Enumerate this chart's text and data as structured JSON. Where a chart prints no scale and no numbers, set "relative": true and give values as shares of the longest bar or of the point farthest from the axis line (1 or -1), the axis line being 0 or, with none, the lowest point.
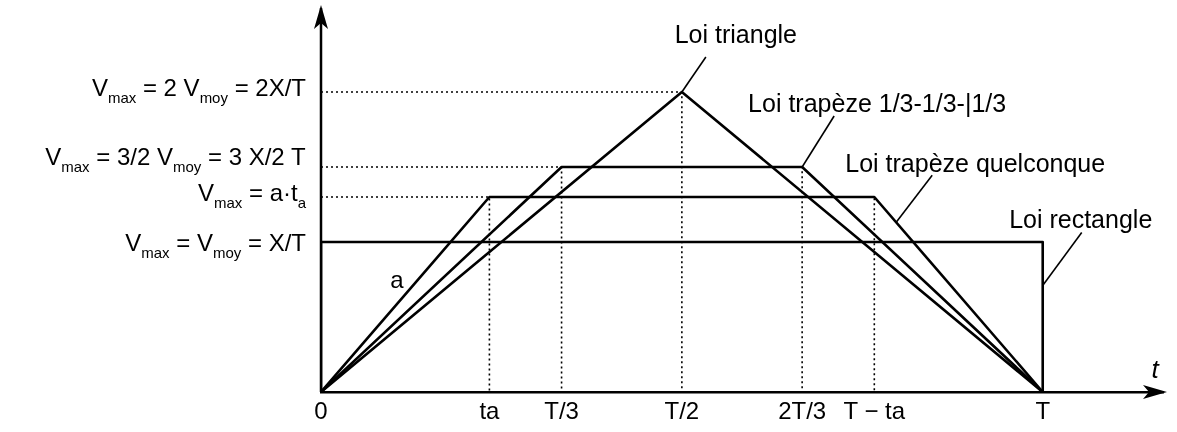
{
  "chart_data": {
    "type": "line",
    "xlabel": "t",
    "relative": true,
    "categories": [
      "0",
      null,
      null,
      null,
      null,
      null,
      null,
      "ta",
      null,
      null,
      "T/3",
      null,
      null,
      null,
      null,
      "T/2",
      null,
      null,
      null,
      null,
      "2T/3",
      null,
      null,
      "T − ta",
      null,
      null,
      null,
      null,
      null,
      null,
      "T",
      null,
      null,
      null,
      null,
      null
    ],
    "annotations": [
      "V$_{max}$ = 2 V$_{moy}$ = 2X/T",
      "V$_{max}$ = 3/2 V$_{moy}$ = 3 X/2 T",
      "V$_{max}$ = a·t$_{a}$",
      "V$_{max}$ = V$_{moy}$ = X/T",
      "a"
    ],
    "series": [
      {
        "name": "Loi triangle",
        "color": "#000000",
        "x": [
          "0",
          "T/2",
          "T"
        ],
        "values": [
          0,
          1,
          0
        ]
      },
      {
        "name": "Loi trapèze 1/3-1/3-|1/3",
        "color": "#000000",
        "x": [
          "0",
          "T/3",
          "2T/3",
          "T"
        ],
        "values": [
          0,
          0.75,
          0.75,
          0
        ]
      },
      {
        "name": "Loi trapèze quelconque",
        "color": "#000000",
        "x": [
          "0",
          "ta",
          "T − ta",
          "T"
        ],
        "values": [
          0,
          0.65,
          0.65,
          0
        ]
      },
      {
        "name": "Loi rectangle",
        "color": "#000000",
        "x": [
          "0",
          "0",
          "T",
          "T"
        ],
        "values": [
          0,
          0.5,
          0.5,
          0
        ]
      },
      {
        "color": "#000000",
        "line_style": "dotted",
        "x": [
          "0",
          "T/2",
          "T/2"
        ],
        "values": [
          1,
          1,
          0
        ]
      },
      {
        "color": "#000000",
        "line_style": "dotted",
        "x": [
          "0",
          "T/3",
          "T/3",
          "2T/3",
          "2T/3"
        ],
        "values": [
          0.75,
          0.75,
          0,
          0,
          0.75
        ]
      },
      {
        "color": "#000000",
        "line_style": "dotted",
        "x": [
          "0",
          "ta",
          "ta",
          "T − ta",
          "T − ta"
        ],
        "values": [
          0.65,
          0.65,
          0,
          0,
          0.65
        ]
      }
    ]
  }
}
